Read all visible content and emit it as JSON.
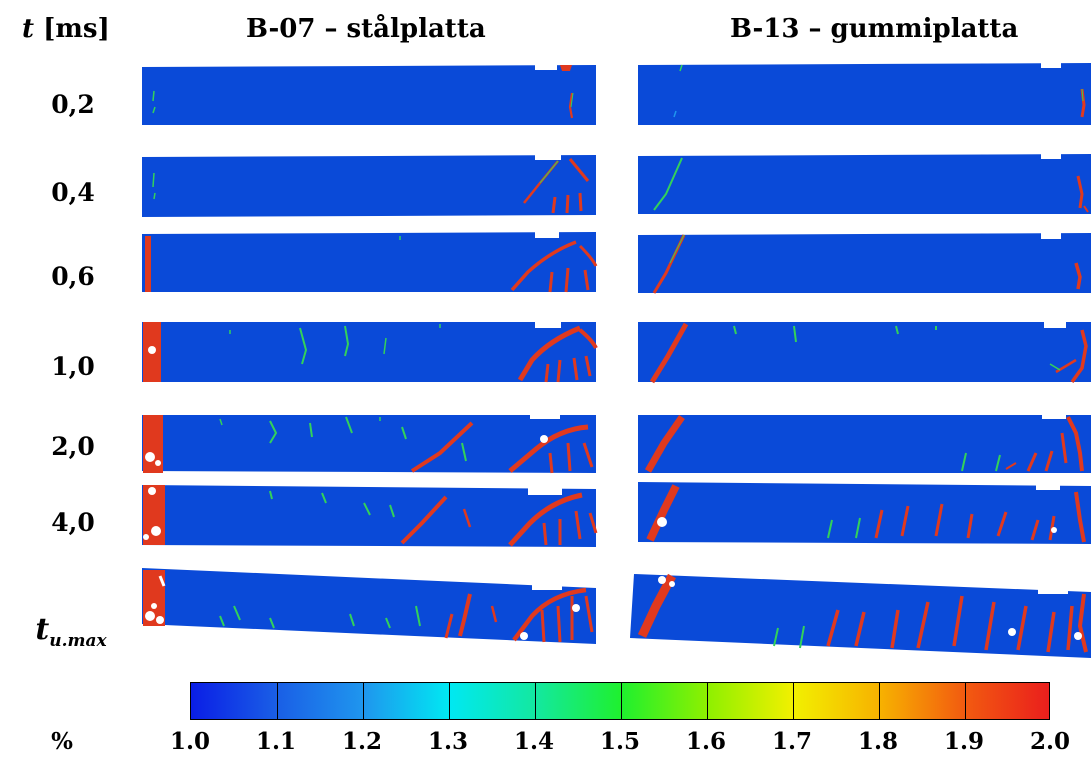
{
  "header": {
    "time_label_var": "t",
    "time_label_unit": " [ms]",
    "col1_title": "B-07 – stålplatta",
    "col2_title": "B-13 – gummiplatta"
  },
  "rows": [
    {
      "label": "0,2"
    },
    {
      "label": "0,4"
    },
    {
      "label": "0,6"
    },
    {
      "label": "1,0"
    },
    {
      "label": "2,0"
    },
    {
      "label": "4,0"
    },
    {
      "label_var": "t",
      "label_sub": "u.max"
    }
  ],
  "colorbar": {
    "unit": "%",
    "ticks": [
      "1.0",
      "1.1",
      "1.2",
      "1.3",
      "1.4",
      "1.5",
      "1.6",
      "1.7",
      "1.8",
      "1.9",
      "2.0"
    ],
    "colors": [
      "#0a1ee6",
      "#1a5fe6",
      "#1f96ee",
      "#00e8f2",
      "#13e8a0",
      "#1ff02e",
      "#8ef000",
      "#f2f000",
      "#f7b200",
      "#f25a10",
      "#ea1d1d"
    ]
  },
  "colors": {
    "beam_blue": "#0a4ad8",
    "crack_red": "#e0391e",
    "crack_green": "#33d15a"
  }
}
